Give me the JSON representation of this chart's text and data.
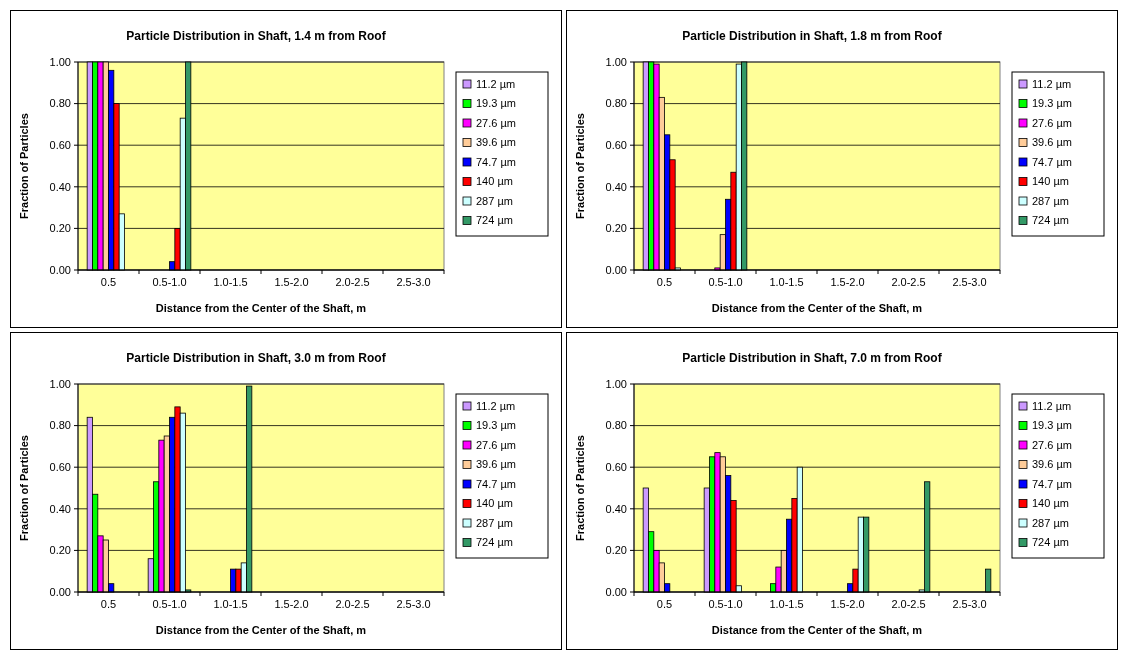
{
  "chart_data": [
    {
      "type": "bar",
      "title": "Particle Distribution in Shaft, 1.4 m from Roof",
      "xlabel": "Distance from the Center of the Shaft, m",
      "ylabel": "Fraction of Particles",
      "categories": [
        "0.5",
        "0.5-1.0",
        "1.0-1.5",
        "1.5-2.0",
        "2.0-2.5",
        "2.5-3.0"
      ],
      "ylim": [
        0,
        1
      ],
      "yticks": [
        {
          "value": 0,
          "label": "0.00"
        },
        {
          "value": 0.2,
          "label": "0.20"
        },
        {
          "value": 0.4,
          "label": "0.40"
        },
        {
          "value": 0.6,
          "label": "0.60"
        },
        {
          "value": 0.8,
          "label": "0.80"
        },
        {
          "value": 1,
          "label": "1.00"
        }
      ],
      "grid": "y",
      "legend": "right",
      "series": [
        {
          "name": "11.2 µm",
          "color": "#cc99ff",
          "values": [
            1,
            0,
            0,
            0,
            0,
            0
          ]
        },
        {
          "name": "19.3 µm",
          "color": "#00ff00",
          "values": [
            1,
            0,
            0,
            0,
            0,
            0
          ]
        },
        {
          "name": "27.6 µm",
          "color": "#ff00ff",
          "values": [
            1,
            0,
            0,
            0,
            0,
            0
          ]
        },
        {
          "name": "39.6 µm",
          "color": "#ffcc99",
          "values": [
            1,
            0,
            0,
            0,
            0,
            0
          ]
        },
        {
          "name": "74.7 µm",
          "color": "#0000ff",
          "values": [
            0.96,
            0.04,
            0,
            0,
            0,
            0
          ]
        },
        {
          "name": "140 µm",
          "color": "#ff0000",
          "values": [
            0.8,
            0.2,
            0,
            0,
            0,
            0
          ]
        },
        {
          "name": "287 µm",
          "color": "#ccffff",
          "values": [
            0.27,
            0.73,
            0,
            0,
            0,
            0
          ]
        },
        {
          "name": "724 µm",
          "color": "#339966",
          "values": [
            0,
            1,
            0,
            0,
            0,
            0
          ]
        }
      ]
    },
    {
      "type": "bar",
      "title": "Particle Distribution in Shaft, 1.8 m from Roof",
      "xlabel": "Distance from the Center of the Shaft, m",
      "ylabel": "Fraction of Particles",
      "categories": [
        "0.5",
        "0.5-1.0",
        "1.0-1.5",
        "1.5-2.0",
        "2.0-2.5",
        "2.5-3.0"
      ],
      "ylim": [
        0,
        1
      ],
      "yticks": [
        {
          "value": 0,
          "label": "0.00"
        },
        {
          "value": 0.2,
          "label": "0.20"
        },
        {
          "value": 0.4,
          "label": "0.40"
        },
        {
          "value": 0.6,
          "label": "0.60"
        },
        {
          "value": 0.8,
          "label": "0.80"
        },
        {
          "value": 1,
          "label": "1.00"
        }
      ],
      "grid": "y",
      "legend": "right",
      "series": [
        {
          "name": "11.2 µm",
          "color": "#cc99ff",
          "values": [
            1,
            0,
            0,
            0,
            0,
            0
          ]
        },
        {
          "name": "19.3 µm",
          "color": "#00ff00",
          "values": [
            1,
            0,
            0,
            0,
            0,
            0
          ]
        },
        {
          "name": "27.6 µm",
          "color": "#ff00ff",
          "values": [
            0.99,
            0.01,
            0,
            0,
            0,
            0
          ]
        },
        {
          "name": "39.6 µm",
          "color": "#ffcc99",
          "values": [
            0.83,
            0.17,
            0,
            0,
            0,
            0
          ]
        },
        {
          "name": "74.7 µm",
          "color": "#0000ff",
          "values": [
            0.65,
            0.34,
            0,
            0,
            0,
            0
          ]
        },
        {
          "name": "140 µm",
          "color": "#ff0000",
          "values": [
            0.53,
            0.47,
            0,
            0,
            0,
            0
          ]
        },
        {
          "name": "287 µm",
          "color": "#ccffff",
          "values": [
            0.01,
            0.99,
            0,
            0,
            0,
            0
          ]
        },
        {
          "name": "724 µm",
          "color": "#339966",
          "values": [
            0,
            1,
            0,
            0,
            0,
            0
          ]
        }
      ]
    },
    {
      "type": "bar",
      "title": "Particle Distribution in Shaft, 3.0 m from Roof",
      "xlabel": "Distance from the Center of the Shaft, m",
      "ylabel": "Fraction of Particles",
      "categories": [
        "0.5",
        "0.5-1.0",
        "1.0-1.5",
        "1.5-2.0",
        "2.0-2.5",
        "2.5-3.0"
      ],
      "ylim": [
        0,
        1
      ],
      "yticks": [
        {
          "value": 0,
          "label": "0.00"
        },
        {
          "value": 0.2,
          "label": "0.20"
        },
        {
          "value": 0.4,
          "label": "0.40"
        },
        {
          "value": 0.6,
          "label": "0.60"
        },
        {
          "value": 0.8,
          "label": "0.80"
        },
        {
          "value": 1,
          "label": "1.00"
        }
      ],
      "grid": "y",
      "legend": "right",
      "series": [
        {
          "name": "11.2 µm",
          "color": "#cc99ff",
          "values": [
            0.84,
            0.16,
            0,
            0,
            0,
            0
          ]
        },
        {
          "name": "19.3 µm",
          "color": "#00ff00",
          "values": [
            0.47,
            0.53,
            0,
            0,
            0,
            0
          ]
        },
        {
          "name": "27.6 µm",
          "color": "#ff00ff",
          "values": [
            0.27,
            0.73,
            0,
            0,
            0,
            0
          ]
        },
        {
          "name": "39.6 µm",
          "color": "#ffcc99",
          "values": [
            0.25,
            0.75,
            0,
            0,
            0,
            0
          ]
        },
        {
          "name": "74.7 µm",
          "color": "#0000ff",
          "values": [
            0.04,
            0.84,
            0.11,
            0,
            0,
            0
          ]
        },
        {
          "name": "140 µm",
          "color": "#ff0000",
          "values": [
            0,
            0.89,
            0.11,
            0,
            0,
            0
          ]
        },
        {
          "name": "287 µm",
          "color": "#ccffff",
          "values": [
            0,
            0.86,
            0.14,
            0,
            0,
            0
          ]
        },
        {
          "name": "724 µm",
          "color": "#339966",
          "values": [
            0,
            0.01,
            0.99,
            0,
            0,
            0
          ]
        }
      ]
    },
    {
      "type": "bar",
      "title": "Particle Distribution in Shaft, 7.0 m from Roof",
      "xlabel": "Distance from the Center of the Shaft, m",
      "ylabel": "Fraction of Particles",
      "categories": [
        "0.5",
        "0.5-1.0",
        "1.0-1.5",
        "1.5-2.0",
        "2.0-2.5",
        "2.5-3.0"
      ],
      "ylim": [
        0,
        1
      ],
      "yticks": [
        {
          "value": 0,
          "label": "0.00"
        },
        {
          "value": 0.2,
          "label": "0.20"
        },
        {
          "value": 0.4,
          "label": "0.40"
        },
        {
          "value": 0.6,
          "label": "0.60"
        },
        {
          "value": 0.8,
          "label": "0.80"
        },
        {
          "value": 1,
          "label": "1.00"
        }
      ],
      "grid": "y",
      "legend": "right",
      "series": [
        {
          "name": "11.2 µm",
          "color": "#cc99ff",
          "values": [
            0.5,
            0.5,
            0,
            0,
            0,
            0
          ]
        },
        {
          "name": "19.3 µm",
          "color": "#00ff00",
          "values": [
            0.29,
            0.65,
            0.04,
            0,
            0,
            0
          ]
        },
        {
          "name": "27.6 µm",
          "color": "#ff00ff",
          "values": [
            0.2,
            0.67,
            0.12,
            0,
            0,
            0
          ]
        },
        {
          "name": "39.6 µm",
          "color": "#ffcc99",
          "values": [
            0.14,
            0.65,
            0.2,
            0,
            0,
            0
          ]
        },
        {
          "name": "74.7 µm",
          "color": "#0000ff",
          "values": [
            0.04,
            0.56,
            0.35,
            0.04,
            0,
            0
          ]
        },
        {
          "name": "140 µm",
          "color": "#ff0000",
          "values": [
            0,
            0.44,
            0.45,
            0.11,
            0,
            0
          ]
        },
        {
          "name": "287 µm",
          "color": "#ccffff",
          "values": [
            0,
            0.03,
            0.6,
            0.36,
            0.01,
            0
          ]
        },
        {
          "name": "724 µm",
          "color": "#339966",
          "values": [
            0,
            0,
            0,
            0.36,
            0.53,
            0.11
          ]
        }
      ]
    }
  ]
}
